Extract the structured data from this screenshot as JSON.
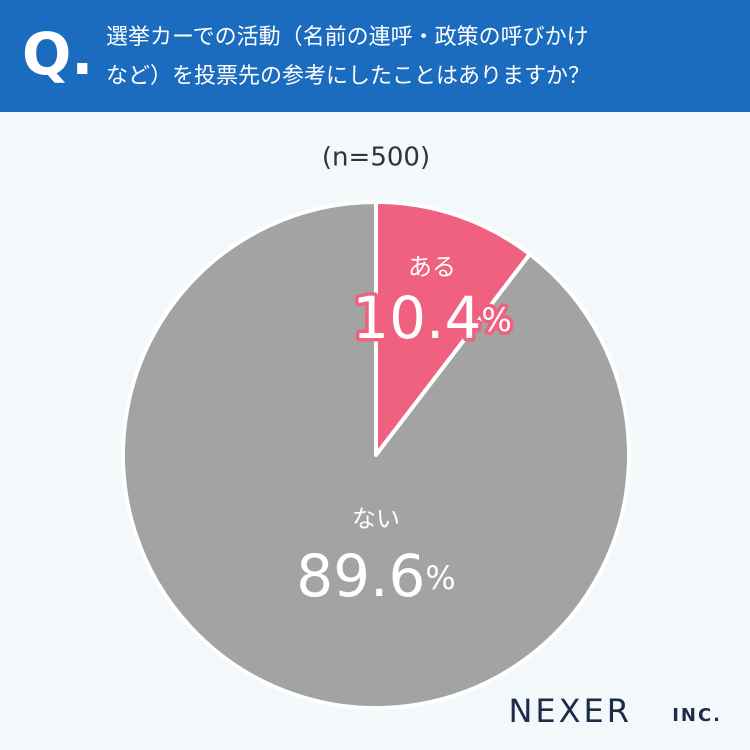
{
  "header": {
    "mark": "Q.",
    "lines": [
      "選挙カーでの活動（名前の連呼・政策の呼びかけ",
      "など）を投票先の参考にしたことはありますか？"
    ]
  },
  "chart_data": {
    "type": "pie",
    "subtitle": "(n=500)",
    "categories": [
      "ある",
      "ない"
    ],
    "values": [
      10.4,
      89.6
    ],
    "value_labels": [
      "10.4%",
      "89.6%"
    ],
    "colors": [
      "#f0607f",
      "#a3a3a3"
    ]
  },
  "brand": {
    "name": "NEXER",
    "suffix": "INC."
  }
}
